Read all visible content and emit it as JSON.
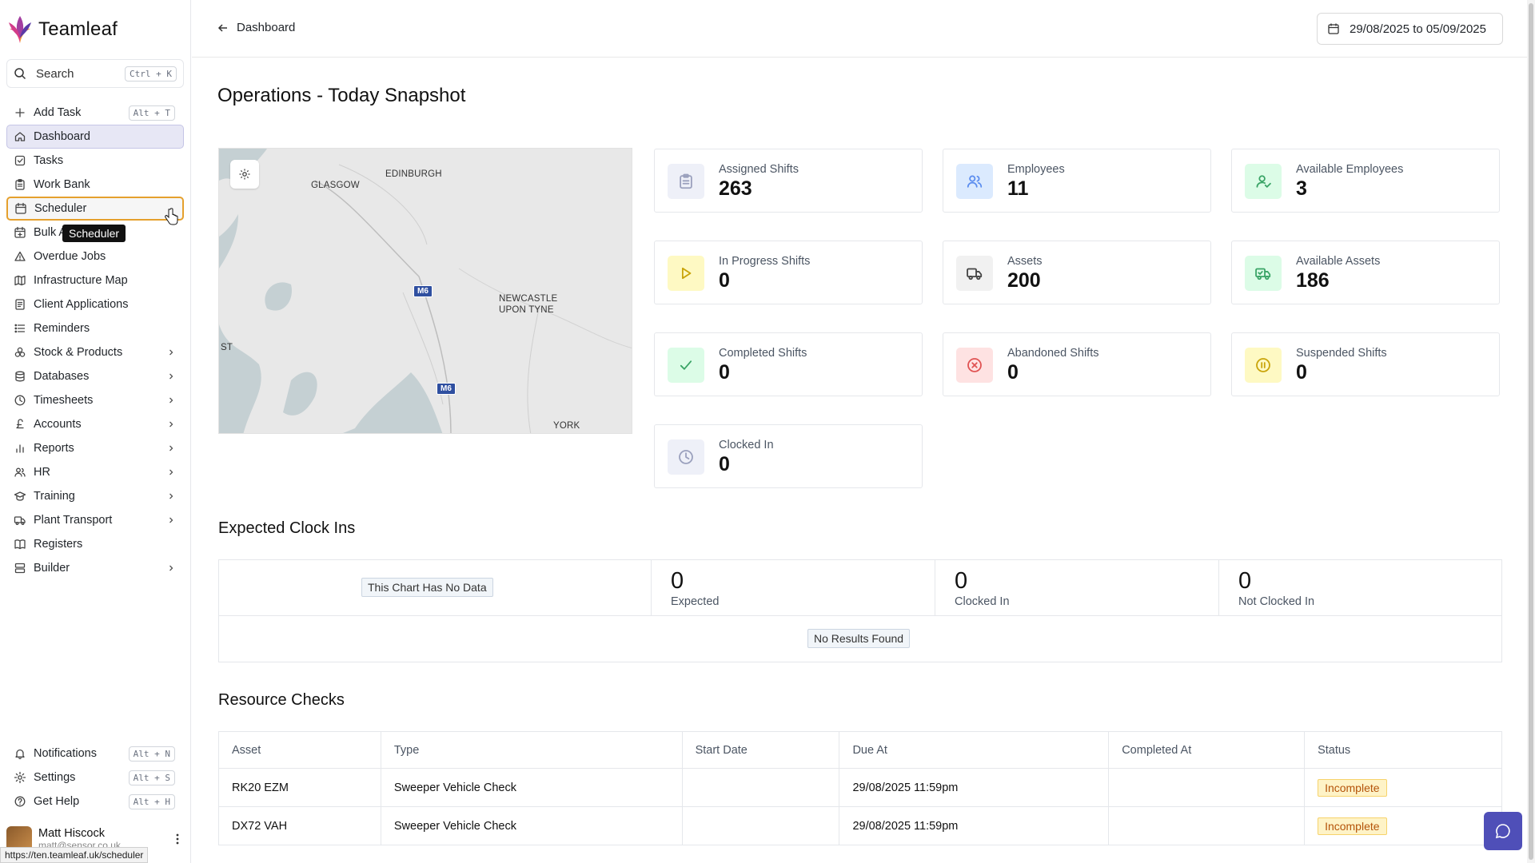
{
  "app": {
    "name": "Teamleaf"
  },
  "sidebar": {
    "search": {
      "label": "Search",
      "shortcut": "Ctrl + K"
    },
    "items": [
      {
        "label": "Add Task",
        "icon": "plus-icon",
        "shortcut": "Alt + T"
      },
      {
        "label": "Dashboard",
        "icon": "home-icon",
        "active": true
      },
      {
        "label": "Tasks",
        "icon": "checkbox-icon"
      },
      {
        "label": "Work Bank",
        "icon": "clipboard-icon"
      },
      {
        "label": "Scheduler",
        "icon": "calendar-icon",
        "hover": true
      },
      {
        "label": "Bulk Actions",
        "icon": "calendar-plus-icon"
      },
      {
        "label": "Overdue Jobs",
        "icon": "warning-icon"
      },
      {
        "label": "Infrastructure Map",
        "icon": "map-icon"
      },
      {
        "label": "Client Applications",
        "icon": "document-icon"
      },
      {
        "label": "Reminders",
        "icon": "list-icon"
      },
      {
        "label": "Stock & Products",
        "icon": "boxes-icon",
        "submenu": true
      },
      {
        "label": "Databases",
        "icon": "database-icon",
        "submenu": true
      },
      {
        "label": "Timesheets",
        "icon": "clock-icon",
        "submenu": true
      },
      {
        "label": "Accounts",
        "icon": "pound-icon",
        "submenu": true
      },
      {
        "label": "Reports",
        "icon": "bar-chart-icon",
        "submenu": true
      },
      {
        "label": "HR",
        "icon": "users-icon",
        "submenu": true
      },
      {
        "label": "Training",
        "icon": "graduation-cap-icon",
        "submenu": true
      },
      {
        "label": "Plant Transport",
        "icon": "truck-icon",
        "submenu": true
      },
      {
        "label": "Registers",
        "icon": "book-icon"
      },
      {
        "label": "Builder",
        "icon": "layout-icon",
        "submenu": true
      }
    ],
    "tooltip": "Scheduler",
    "bottom": [
      {
        "label": "Notifications",
        "icon": "bell-icon",
        "shortcut": "Alt + N"
      },
      {
        "label": "Settings",
        "icon": "gear-icon",
        "shortcut": "Alt + S"
      },
      {
        "label": "Get Help",
        "icon": "help-icon",
        "shortcut": "Alt + H"
      }
    ],
    "user": {
      "name": "Matt Hiscock",
      "email": "matt@sensor.co.uk"
    },
    "status_url": "https://ten.teamleaf.uk/scheduler"
  },
  "header": {
    "back_label": "Dashboard",
    "date_range": "29/08/2025 to 05/09/2025"
  },
  "page": {
    "title": "Operations - Today Snapshot"
  },
  "map": {
    "labels": [
      "GLASGOW",
      "EDINBURGH",
      "NEWCASTLE",
      "UPON TYNE",
      "ST",
      "YORK"
    ],
    "roads": [
      "M6",
      "M6"
    ]
  },
  "stats": [
    {
      "label": "Assigned Shifts",
      "value": "263",
      "icon": "clipboard-icon",
      "color": "#eef0f8",
      "stroke": "#9aa0bd"
    },
    {
      "label": "Employees",
      "value": "11",
      "icon": "users-icon",
      "color": "#dbeafe",
      "stroke": "#5b8def"
    },
    {
      "label": "Available Employees",
      "value": "3",
      "icon": "user-check-icon",
      "color": "#dcfce7",
      "stroke": "#3aa466"
    },
    {
      "label": "In Progress Shifts",
      "value": "0",
      "icon": "play-icon",
      "color": "#fef9c3",
      "stroke": "#c9a40a"
    },
    {
      "label": "Assets",
      "value": "200",
      "icon": "truck-icon",
      "color": "#f1f1f1",
      "stroke": "#444444"
    },
    {
      "label": "Available Assets",
      "value": "186",
      "icon": "truck-check-icon",
      "color": "#dcfce7",
      "stroke": "#3aa466"
    },
    {
      "label": "Completed Shifts",
      "value": "0",
      "icon": "check-icon",
      "color": "#dcfce7",
      "stroke": "#3aa466"
    },
    {
      "label": "Abandoned Shifts",
      "value": "0",
      "icon": "x-circle-icon",
      "color": "#fee2e2",
      "stroke": "#e05353"
    },
    {
      "label": "Suspended Shifts",
      "value": "0",
      "icon": "pause-circle-icon",
      "color": "#fef9c3",
      "stroke": "#c9a40a"
    },
    {
      "label": "Clocked In",
      "value": "0",
      "icon": "clock-icon",
      "color": "#eef0f8",
      "stroke": "#9aa0bd"
    }
  ],
  "expected_clock_ins": {
    "title": "Expected Clock Ins",
    "no_data": "This Chart Has No Data",
    "cells": [
      {
        "value": "0",
        "label": "Expected"
      },
      {
        "value": "0",
        "label": "Clocked In"
      },
      {
        "value": "0",
        "label": "Not Clocked In"
      }
    ],
    "no_results": "No Results Found"
  },
  "resource_checks": {
    "title": "Resource Checks",
    "columns": [
      "Asset",
      "Type",
      "Start Date",
      "Due At",
      "Completed At",
      "Status"
    ],
    "rows": [
      {
        "asset": "RK20 EZM",
        "type": "Sweeper Vehicle Check",
        "start": "",
        "due": "29/08/2025 11:59pm",
        "completed": "",
        "status": "Incomplete"
      },
      {
        "asset": "DX72 VAH",
        "type": "Sweeper Vehicle Check",
        "start": "",
        "due": "29/08/2025 11:59pm",
        "completed": "",
        "status": "Incomplete"
      }
    ]
  }
}
